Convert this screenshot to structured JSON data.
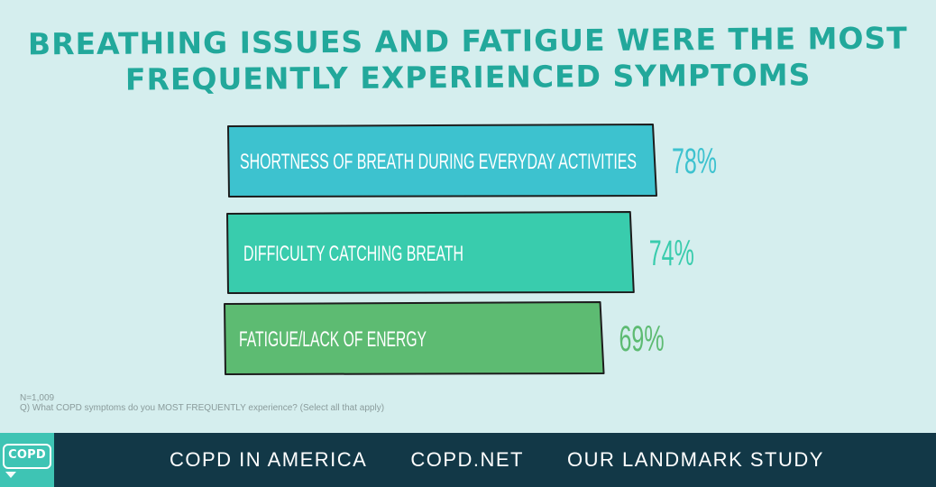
{
  "title": {
    "line1": "Breathing issues and fatigue were the most",
    "line2": "frequently experienced symptoms"
  },
  "notes": {
    "n": "N=1,009",
    "question": "Q) What COPD symptoms do you MOST FREQUENTLY experience? (Select all that apply)"
  },
  "footer": {
    "logo": "COPD",
    "links": [
      "COPD IN AMERICA",
      "COPD.NET",
      "OUR LANDMARK STUDY"
    ]
  },
  "colors": {
    "background": "#d5eeee",
    "title": "#22a89b",
    "footer": "#123847",
    "bar1": "#3dc2cf",
    "bar2": "#39ccad",
    "bar3": "#5dbb72",
    "outline": "#1d1d1d"
  },
  "chart_data": {
    "type": "bar",
    "orientation": "horizontal",
    "categories": [
      "Shortness of breath during everyday activities",
      "Difficulty catching breath",
      "Fatigue/lack of energy"
    ],
    "values": [
      78,
      74,
      69
    ],
    "value_labels": [
      "78%",
      "74%",
      "69%"
    ],
    "bar_colors": [
      "#3dc2cf",
      "#39ccad",
      "#5dbb72"
    ],
    "xlim": [
      0,
      100
    ]
  }
}
